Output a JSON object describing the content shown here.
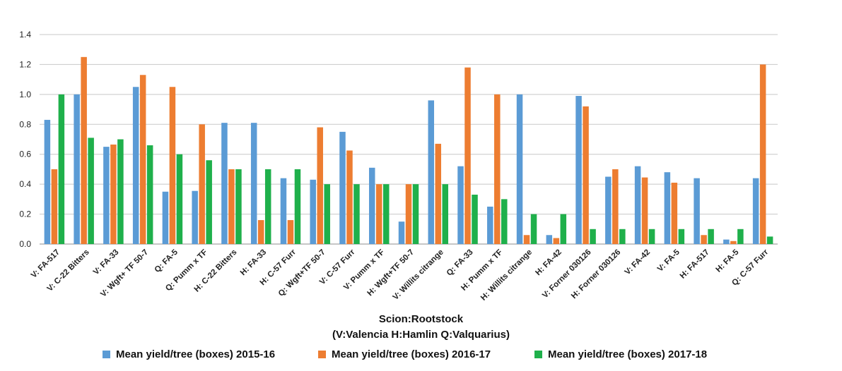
{
  "chart_data": {
    "type": "bar",
    "categories": [
      "V: FA-517",
      "V: C-22 Bitters",
      "V: FA-33",
      "V: Wgft+ TF 50-7",
      "Q: FA-5",
      "Q: Pumm x TF",
      "H: C-22 Bitters",
      "H: FA-33",
      "H: C-57 Furr",
      "Q: Wgft+TF 50-7",
      "V: C-57 Furr",
      "V: Pumm x TF",
      "H: Wgft+TF 50-7",
      "V: Willits citrange",
      "Q: FA-33",
      "H: Pumm x TF",
      "H: Willits citrange",
      "H: FA-42",
      "V: Forner 030126",
      "H: Forner 030126",
      "V: FA-42",
      "V: FA-5",
      "H: FA-517",
      "H: FA-5",
      "Q: C-57 Furr"
    ],
    "series": [
      {
        "name": "Mean yield/tree (boxes) 2015-16",
        "color": "#5b9bd5",
        "values": [
          0.83,
          1.0,
          0.65,
          1.05,
          0.35,
          0.355,
          0.81,
          0.81,
          0.44,
          0.43,
          0.75,
          0.51,
          0.15,
          0.96,
          0.52,
          0.25,
          1.0,
          0.06,
          0.99,
          0.45,
          0.52,
          0.48,
          0.44,
          0.03,
          0.44
        ]
      },
      {
        "name": "Mean yield/tree (boxes) 2016-17",
        "color": "#ed7d31",
        "values": [
          0.5,
          1.25,
          0.665,
          1.13,
          1.05,
          0.8,
          0.5,
          0.16,
          0.16,
          0.78,
          0.625,
          0.4,
          0.4,
          0.67,
          1.18,
          1.0,
          0.06,
          0.04,
          0.92,
          0.5,
          0.445,
          0.41,
          0.06,
          0.02,
          1.2
        ]
      },
      {
        "name": "Mean yield/tree (boxes) 2017-18",
        "color": "#1fb04b",
        "values": [
          1.0,
          0.71,
          0.7,
          0.66,
          0.6,
          0.56,
          0.5,
          0.5,
          0.5,
          0.4,
          0.4,
          0.4,
          0.4,
          0.4,
          0.33,
          0.3,
          0.2,
          0.2,
          0.1,
          0.1,
          0.1,
          0.1,
          0.1,
          0.1,
          0.05
        ]
      }
    ],
    "yticks": [
      "0.0",
      "0.2",
      "0.4",
      "0.6",
      "0.8",
      "1.0",
      "1.2",
      "1.4"
    ],
    "ylim": [
      0,
      1.4
    ],
    "grid": true,
    "legend": "bottom",
    "title": "",
    "ylabel": "",
    "xlabel_line1": "Scion:Rootstock",
    "xlabel_line2": "(V:Valencia   H:Hamlin  Q:Valquarius)"
  }
}
